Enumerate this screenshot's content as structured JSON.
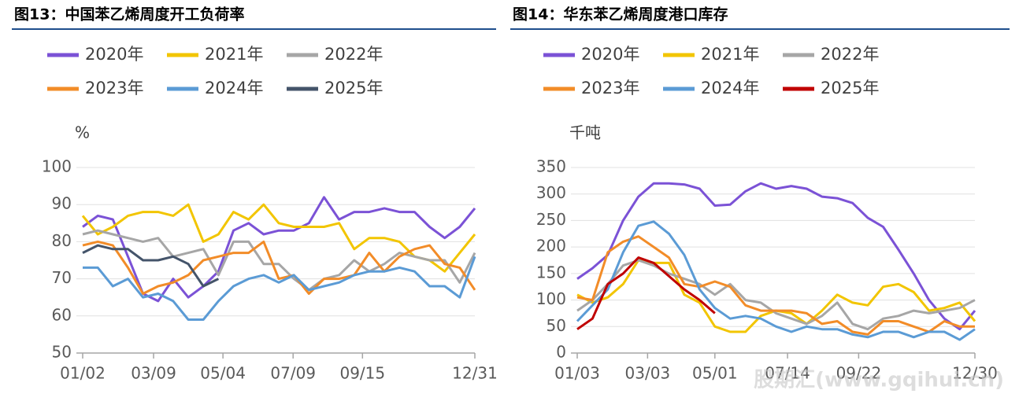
{
  "chart_data": [
    {
      "type": "line",
      "title": "图13：中国苯乙烯周度开工负荷率",
      "y_label": "%",
      "x": [
        0,
        2,
        4,
        6,
        8,
        10,
        12,
        14,
        16,
        18,
        20,
        22,
        24,
        26,
        28,
        30,
        32,
        34,
        36,
        38,
        40,
        42,
        44,
        46,
        48,
        50,
        52
      ],
      "xlim": [
        0,
        52
      ],
      "xticks": [
        {
          "value": 0,
          "label": "01/02"
        },
        {
          "value": 9.4,
          "label": "03/09"
        },
        {
          "value": 18.6,
          "label": "05/04"
        },
        {
          "value": 27.9,
          "label": "07/09"
        },
        {
          "value": 37.1,
          "label": "09/15"
        },
        {
          "value": 52,
          "label": "12/31"
        }
      ],
      "ylim": [
        50,
        100
      ],
      "yticks": [
        50,
        60,
        70,
        80,
        90,
        100
      ],
      "grid": true,
      "series": [
        {
          "name": "2020年",
          "color": "#7b52d6",
          "values": [
            84,
            87,
            86,
            76,
            66,
            64,
            70,
            65,
            68,
            72,
            83,
            85,
            82,
            83,
            83,
            85,
            92,
            86,
            88,
            88,
            89,
            88,
            88,
            84,
            81,
            84,
            89
          ]
        },
        {
          "name": "2021年",
          "color": "#f2c500",
          "values": [
            87,
            82,
            84,
            87,
            88,
            88,
            87,
            90,
            80,
            82,
            88,
            86,
            90,
            85,
            84,
            84,
            84,
            85,
            78,
            81,
            81,
            80,
            76,
            75,
            72,
            77,
            82
          ]
        },
        {
          "name": "2022年",
          "color": "#a6a6a6",
          "values": [
            82,
            83,
            82,
            81,
            80,
            81,
            76,
            77,
            78,
            71,
            80,
            80,
            74,
            74,
            70,
            67,
            70,
            71,
            75,
            72,
            74,
            77,
            76,
            75,
            75,
            69,
            77
          ]
        },
        {
          "name": "2023年",
          "color": "#f28c28",
          "values": [
            79,
            80,
            79,
            73,
            66,
            68,
            69,
            71,
            75,
            76,
            77,
            77,
            80,
            70,
            71,
            66,
            70,
            70,
            71,
            77,
            72,
            76,
            78,
            79,
            74,
            73,
            67
          ]
        },
        {
          "name": "2024年",
          "color": "#5b9bd5",
          "values": [
            73,
            73,
            68,
            70,
            65,
            66,
            64,
            59,
            59,
            64,
            68,
            70,
            71,
            69,
            71,
            67,
            68,
            69,
            71,
            72,
            72,
            73,
            72,
            68,
            68,
            65,
            76
          ]
        },
        {
          "name": "2025年",
          "color": "#44546a",
          "values": [
            77,
            79,
            78,
            78,
            75,
            75,
            76,
            74,
            68,
            70,
            null,
            null,
            null,
            null,
            null,
            null,
            null,
            null,
            null,
            null,
            null,
            null,
            null,
            null,
            null,
            null,
            null
          ]
        }
      ]
    },
    {
      "type": "line",
      "title": "图14：华东苯乙烯周度港口库存",
      "y_label": "千吨",
      "x": [
        0,
        2,
        4,
        6,
        8,
        10,
        12,
        14,
        16,
        18,
        20,
        22,
        24,
        26,
        28,
        30,
        32,
        34,
        36,
        38,
        40,
        42,
        44,
        46,
        48,
        50,
        52
      ],
      "xlim": [
        0,
        52
      ],
      "xticks": [
        {
          "value": 0,
          "label": "01/03"
        },
        {
          "value": 9.2,
          "label": "03/03"
        },
        {
          "value": 18,
          "label": "05/01"
        },
        {
          "value": 27.5,
          "label": "07/14"
        },
        {
          "value": 36.8,
          "label": "09/22"
        },
        {
          "value": 52,
          "label": "12/30"
        }
      ],
      "ylim": [
        0,
        350
      ],
      "yticks": [
        0,
        50,
        100,
        150,
        200,
        250,
        300,
        350
      ],
      "grid": true,
      "series": [
        {
          "name": "2020年",
          "color": "#7b52d6",
          "values": [
            140,
            160,
            185,
            250,
            295,
            320,
            320,
            318,
            310,
            278,
            280,
            305,
            320,
            310,
            315,
            310,
            295,
            292,
            283,
            255,
            238,
            195,
            150,
            100,
            65,
            45,
            80
          ]
        },
        {
          "name": "2021年",
          "color": "#f2c500",
          "values": [
            110,
            95,
            105,
            130,
            175,
            170,
            170,
            110,
            95,
            50,
            40,
            40,
            70,
            80,
            75,
            55,
            80,
            110,
            95,
            90,
            125,
            130,
            115,
            80,
            85,
            95,
            60
          ]
        },
        {
          "name": "2022年",
          "color": "#a6a6a6",
          "values": [
            80,
            100,
            130,
            165,
            175,
            165,
            150,
            140,
            130,
            110,
            130,
            100,
            95,
            75,
            65,
            55,
            70,
            95,
            55,
            45,
            65,
            70,
            80,
            75,
            80,
            85,
            100
          ]
        },
        {
          "name": "2023年",
          "color": "#f28c28",
          "values": [
            105,
            100,
            190,
            210,
            220,
            200,
            180,
            130,
            125,
            135,
            125,
            90,
            80,
            80,
            80,
            75,
            55,
            60,
            40,
            35,
            60,
            60,
            50,
            40,
            60,
            50,
            50
          ]
        },
        {
          "name": "2024年",
          "color": "#5b9bd5",
          "values": [
            60,
            90,
            120,
            190,
            240,
            248,
            225,
            185,
            120,
            85,
            65,
            70,
            65,
            50,
            40,
            50,
            45,
            45,
            35,
            30,
            40,
            40,
            30,
            40,
            40,
            25,
            45
          ]
        },
        {
          "name": "2025年",
          "color": "#c00000",
          "values": [
            45,
            65,
            130,
            150,
            180,
            170,
            145,
            120,
            100,
            75,
            null,
            null,
            null,
            null,
            null,
            null,
            null,
            null,
            null,
            null,
            null,
            null,
            null,
            null,
            null,
            null,
            null
          ]
        }
      ],
      "watermark": "股期汇(www.gqihui.cn)"
    }
  ]
}
